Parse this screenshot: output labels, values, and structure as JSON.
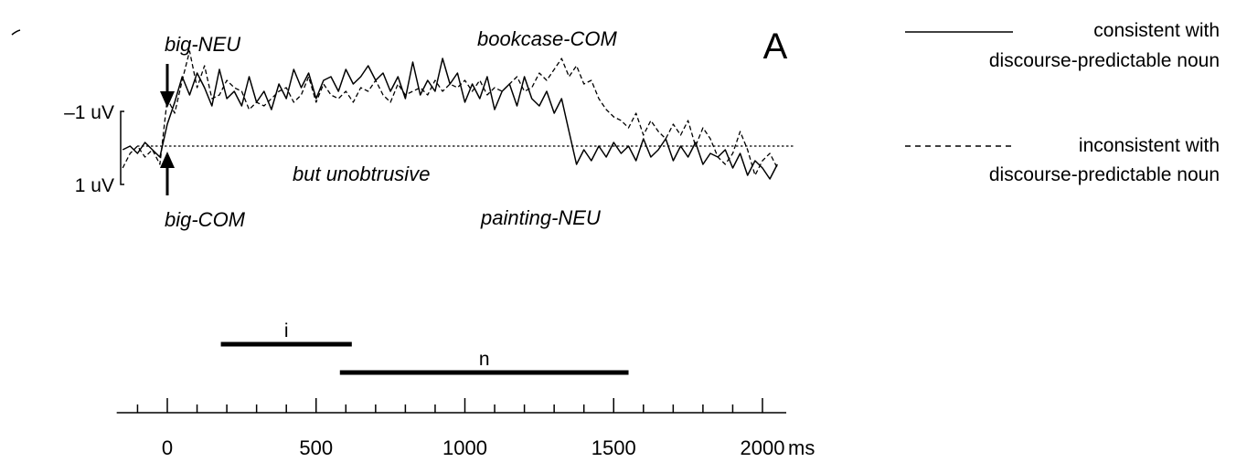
{
  "chart_data": {
    "type": "line",
    "panel_letter": "A",
    "series": [
      {
        "name": "consistent with discourse-predictable noun",
        "style": "solid",
        "color": "#000000",
        "legend_line1": "consistent with",
        "legend_line2": "discourse-predictable noun"
      },
      {
        "name": "inconsistent with discourse-predictable noun",
        "style": "dashed",
        "color": "#000000",
        "legend_line1": "inconsistent with",
        "legend_line2": "discourse-predictable noun"
      }
    ],
    "scale_bar": {
      "top_label": "–1 uV",
      "bottom_label": "1 uV",
      "top_value": -1,
      "bottom_value": 1
    },
    "annotations": {
      "big_neu": "big-NEU",
      "big_com": "big-COM",
      "bookcase_com": "bookcase-COM",
      "painting_neu": "painting-NEU",
      "but_unobtrusive": "but unobtrusive"
    },
    "windows": [
      {
        "label": "i",
        "start": 180,
        "end": 620
      },
      {
        "label": "n",
        "start": 580,
        "end": 1550
      }
    ],
    "x_axis": {
      "range": [
        -170,
        2080
      ],
      "ticks": [
        0,
        500,
        1000,
        1500,
        2000
      ],
      "tick_labels": [
        "0",
        "500",
        "1000",
        "1500",
        "2000"
      ],
      "minor_step": 100,
      "unit": "ms"
    },
    "y_range": [
      -2.6,
      1.8
    ],
    "x_samples": [
      -150,
      -125,
      -100,
      -75,
      -50,
      -25,
      0,
      25,
      50,
      75,
      100,
      125,
      150,
      175,
      200,
      225,
      250,
      275,
      300,
      325,
      350,
      375,
      400,
      425,
      450,
      475,
      500,
      525,
      550,
      575,
      600,
      625,
      650,
      675,
      700,
      725,
      750,
      775,
      800,
      825,
      850,
      875,
      900,
      925,
      950,
      975,
      1000,
      1025,
      1050,
      1075,
      1100,
      1125,
      1150,
      1175,
      1200,
      1225,
      1250,
      1275,
      1300,
      1325,
      1350,
      1375,
      1400,
      1425,
      1450,
      1475,
      1500,
      1525,
      1550,
      1575,
      1600,
      1625,
      1650,
      1675,
      1700,
      1725,
      1750,
      1775,
      1800,
      1825,
      1850,
      1875,
      1900,
      1925,
      1950,
      1975,
      2000,
      2025,
      2050
    ],
    "consistent": [
      0.1,
      0.0,
      0.2,
      -0.1,
      0.1,
      0.3,
      -0.6,
      -1.2,
      -1.9,
      -1.4,
      -2.0,
      -1.6,
      -1.1,
      -2.1,
      -1.3,
      -1.5,
      -1.1,
      -1.9,
      -1.2,
      -1.5,
      -1.0,
      -1.7,
      -1.3,
      -2.1,
      -1.6,
      -2.0,
      -1.3,
      -1.8,
      -1.9,
      -1.5,
      -2.1,
      -1.7,
      -1.9,
      -2.2,
      -1.8,
      -2.0,
      -1.5,
      -1.9,
      -1.3,
      -2.3,
      -1.4,
      -1.8,
      -1.5,
      -2.4,
      -1.7,
      -2.0,
      -1.2,
      -1.7,
      -1.3,
      -1.9,
      -1.0,
      -1.5,
      -1.7,
      -1.1,
      -1.9,
      -1.3,
      -1.1,
      -1.5,
      -0.9,
      -1.3,
      -0.4,
      0.5,
      0.1,
      0.4,
      0.0,
      0.3,
      -0.1,
      0.2,
      0.0,
      0.4,
      -0.2,
      0.3,
      0.1,
      -0.2,
      0.4,
      0.0,
      0.3,
      -0.1,
      0.5,
      0.2,
      0.3,
      0.1,
      0.6,
      0.2,
      0.8,
      0.4,
      0.6,
      0.9,
      0.5
    ],
    "inconsistent": [
      0.6,
      0.2,
      0.0,
      0.3,
      0.1,
      0.5,
      -1.3,
      -0.9,
      -1.8,
      -2.6,
      -1.6,
      -2.2,
      -1.3,
      -1.4,
      -1.8,
      -1.6,
      -1.5,
      -1.0,
      -1.2,
      -1.1,
      -1.3,
      -1.5,
      -1.6,
      -1.2,
      -1.4,
      -1.9,
      -1.2,
      -1.7,
      -1.4,
      -1.3,
      -1.5,
      -1.2,
      -1.6,
      -1.5,
      -1.8,
      -1.4,
      -1.2,
      -1.7,
      -1.4,
      -1.5,
      -1.6,
      -1.4,
      -1.8,
      -1.5,
      -1.7,
      -1.6,
      -1.8,
      -1.5,
      -1.8,
      -1.4,
      -1.6,
      -1.5,
      -1.7,
      -1.9,
      -1.5,
      -1.6,
      -2.0,
      -1.8,
      -2.1,
      -2.4,
      -1.9,
      -2.2,
      -1.7,
      -1.8,
      -1.3,
      -1.0,
      -0.8,
      -0.7,
      -0.5,
      -0.9,
      -0.3,
      -0.7,
      -0.4,
      -0.2,
      -0.6,
      -0.3,
      -0.7,
      0.0,
      -0.5,
      -0.2,
      0.3,
      0.5,
      0.2,
      -0.4,
      0.1,
      0.8,
      0.4,
      0.2,
      0.6
    ]
  }
}
